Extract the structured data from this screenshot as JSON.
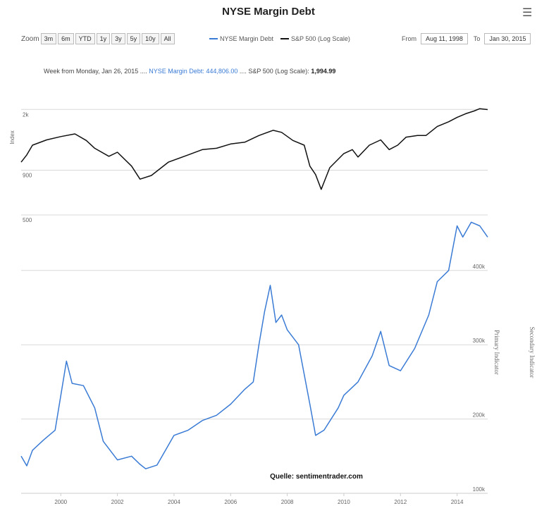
{
  "title": "NYSE Margin Debt",
  "menu_icon": "hamburger-icon",
  "toolbar": {
    "zoom_label": "Zoom",
    "buttons": [
      "3m",
      "6m",
      "YTD",
      "1y",
      "3y",
      "5y",
      "10y",
      "All"
    ]
  },
  "legend": {
    "items": [
      {
        "label": "NYSE Margin Debt",
        "color": "#3a7bd5"
      },
      {
        "label": "S&P 500 (Log Scale)",
        "color": "#111111"
      }
    ]
  },
  "range": {
    "from_label": "From",
    "from_value": "Aug 11, 1998",
    "to_label": "To",
    "to_value": "Jan 30, 2015"
  },
  "tooltip": {
    "prefix": "Week from Monday, Jan 26, 2015",
    "sep1": "....",
    "margin_label": "NYSE Margin Debt: 444,806.00",
    "sep2": "....",
    "sp_label": "S&P 500 (Log Scale):",
    "sp_value": "1,994.99"
  },
  "source": "Quelle: sentimentrader.com",
  "chart_data": [
    {
      "type": "line",
      "ylabel": "Index",
      "yscale": "log",
      "ticks": [
        {
          "label": "2k",
          "value": 2000
        },
        {
          "label": "900",
          "value": 900
        },
        {
          "label": "500",
          "value": 500
        }
      ],
      "ylim": [
        500,
        2100
      ],
      "series": [
        {
          "name": "S&P 500 (Log Scale)",
          "color": "#111111",
          "points": [
            [
              1998.6,
              1000
            ],
            [
              1998.8,
              1100
            ],
            [
              1999.0,
              1250
            ],
            [
              1999.5,
              1340
            ],
            [
              2000.0,
              1400
            ],
            [
              2000.5,
              1450
            ],
            [
              2000.9,
              1330
            ],
            [
              2001.2,
              1200
            ],
            [
              2001.7,
              1080
            ],
            [
              2002.0,
              1140
            ],
            [
              2002.5,
              950
            ],
            [
              2002.8,
              800
            ],
            [
              2003.2,
              840
            ],
            [
              2003.8,
              1000
            ],
            [
              2004.5,
              1100
            ],
            [
              2005.0,
              1180
            ],
            [
              2005.5,
              1200
            ],
            [
              2006.0,
              1270
            ],
            [
              2006.5,
              1300
            ],
            [
              2007.0,
              1420
            ],
            [
              2007.5,
              1520
            ],
            [
              2007.8,
              1480
            ],
            [
              2008.2,
              1330
            ],
            [
              2008.6,
              1250
            ],
            [
              2008.8,
              950
            ],
            [
              2009.0,
              850
            ],
            [
              2009.2,
              700
            ],
            [
              2009.5,
              930
            ],
            [
              2010.0,
              1120
            ],
            [
              2010.3,
              1180
            ],
            [
              2010.5,
              1070
            ],
            [
              2010.9,
              1250
            ],
            [
              2011.3,
              1340
            ],
            [
              2011.6,
              1180
            ],
            [
              2011.9,
              1250
            ],
            [
              2012.2,
              1390
            ],
            [
              2012.6,
              1420
            ],
            [
              2012.9,
              1420
            ],
            [
              2013.3,
              1600
            ],
            [
              2013.7,
              1700
            ],
            [
              2014.0,
              1800
            ],
            [
              2014.3,
              1890
            ],
            [
              2014.6,
              1960
            ],
            [
              2014.8,
              2020
            ],
            [
              2015.08,
              1995
            ]
          ]
        }
      ]
    },
    {
      "type": "line",
      "ylabel": "Primary Indicator",
      "ylabel2": "Secondary Indicator",
      "ticks": [
        {
          "label": "400k",
          "value": 400000
        },
        {
          "label": "300k",
          "value": 300000
        },
        {
          "label": "200k",
          "value": 200000
        },
        {
          "label": "100k",
          "value": 100000
        }
      ],
      "ylim": [
        100000,
        470000
      ],
      "xticks": [
        "2000",
        "2002",
        "2004",
        "2006",
        "2008",
        "2010",
        "2012",
        "2014"
      ],
      "series": [
        {
          "name": "NYSE Margin Debt",
          "color": "#3a7bd5",
          "points": [
            [
              1998.6,
              150000
            ],
            [
              1998.8,
              137000
            ],
            [
              1999.0,
              158000
            ],
            [
              1999.4,
              172000
            ],
            [
              1999.8,
              185000
            ],
            [
              2000.2,
              278000
            ],
            [
              2000.4,
              248000
            ],
            [
              2000.8,
              245000
            ],
            [
              2001.2,
              215000
            ],
            [
              2001.5,
              170000
            ],
            [
              2002.0,
              145000
            ],
            [
              2002.5,
              150000
            ],
            [
              2002.8,
              139000
            ],
            [
              2003.0,
              133000
            ],
            [
              2003.4,
              138000
            ],
            [
              2004.0,
              178000
            ],
            [
              2004.5,
              185000
            ],
            [
              2005.0,
              198000
            ],
            [
              2005.5,
              205000
            ],
            [
              2006.0,
              220000
            ],
            [
              2006.5,
              240000
            ],
            [
              2006.8,
              250000
            ],
            [
              2007.0,
              300000
            ],
            [
              2007.2,
              345000
            ],
            [
              2007.4,
              380000
            ],
            [
              2007.6,
              330000
            ],
            [
              2007.8,
              340000
            ],
            [
              2008.0,
              320000
            ],
            [
              2008.4,
              300000
            ],
            [
              2008.8,
              220000
            ],
            [
              2009.0,
              178000
            ],
            [
              2009.3,
              185000
            ],
            [
              2009.8,
              215000
            ],
            [
              2010.0,
              232000
            ],
            [
              2010.5,
              250000
            ],
            [
              2011.0,
              285000
            ],
            [
              2011.3,
              318000
            ],
            [
              2011.6,
              272000
            ],
            [
              2012.0,
              265000
            ],
            [
              2012.5,
              295000
            ],
            [
              2013.0,
              340000
            ],
            [
              2013.3,
              385000
            ],
            [
              2013.7,
              400000
            ],
            [
              2014.0,
              460000
            ],
            [
              2014.2,
              445000
            ],
            [
              2014.5,
              465000
            ],
            [
              2014.8,
              460000
            ],
            [
              2015.08,
              445000
            ]
          ]
        }
      ]
    }
  ]
}
